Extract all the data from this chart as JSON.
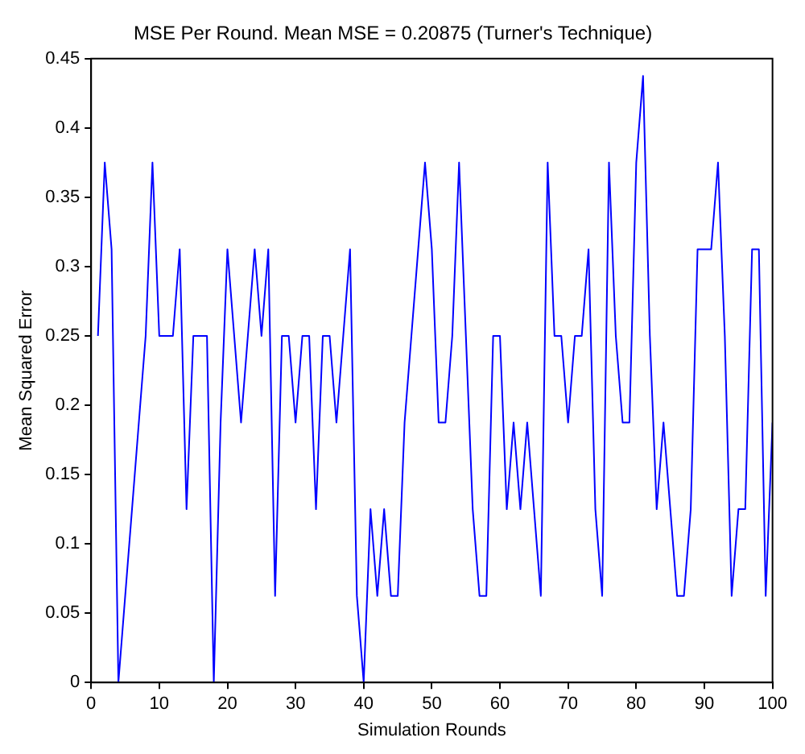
{
  "chart_data": {
    "type": "line",
    "title": "MSE Per Round. Mean MSE = 0.20875 (Turner's Technique)",
    "xlabel": "Simulation Rounds",
    "ylabel": "Mean Squared Error",
    "x": [
      1,
      2,
      3,
      4,
      5,
      6,
      7,
      8,
      9,
      10,
      11,
      12,
      13,
      14,
      15,
      16,
      17,
      18,
      19,
      20,
      21,
      22,
      23,
      24,
      25,
      26,
      27,
      28,
      29,
      30,
      31,
      32,
      33,
      34,
      35,
      36,
      37,
      38,
      39,
      40,
      41,
      42,
      43,
      44,
      45,
      46,
      47,
      48,
      49,
      50,
      51,
      52,
      53,
      54,
      55,
      56,
      57,
      58,
      59,
      60,
      61,
      62,
      63,
      64,
      65,
      66,
      67,
      68,
      69,
      70,
      71,
      72,
      73,
      74,
      75,
      76,
      77,
      78,
      79,
      80,
      81,
      82,
      83,
      84,
      85,
      86,
      87,
      88,
      89,
      90,
      91,
      92,
      93,
      94,
      95,
      96,
      97,
      98,
      99,
      100
    ],
    "series": [
      {
        "color": "#0000ff",
        "values": [
          0.25,
          0.375,
          0.3125,
          0,
          0.0625,
          0.125,
          0.1875,
          0.25,
          0.375,
          0.25,
          0.25,
          0.25,
          0.3125,
          0.125,
          0.25,
          0.25,
          0.25,
          0,
          0.1875,
          0.3125,
          0.25,
          0.1875,
          0.25,
          0.3125,
          0.25,
          0.3125,
          0.0625,
          0.25,
          0.25,
          0.1875,
          0.25,
          0.25,
          0.125,
          0.25,
          0.25,
          0.1875,
          0.25,
          0.3125,
          0.0625,
          0,
          0.125,
          0.0625,
          0.125,
          0.0625,
          0.0625,
          0.1875,
          0.25,
          0.3125,
          0.375,
          0.3125,
          0.1875,
          0.1875,
          0.25,
          0.375,
          0.25,
          0.125,
          0.0625,
          0.0625,
          0.25,
          0.25,
          0.125,
          0.1875,
          0.125,
          0.1875,
          0.125,
          0.0625,
          0.375,
          0.25,
          0.25,
          0.1875,
          0.25,
          0.25,
          0.3125,
          0.125,
          0.0625,
          0.375,
          0.25,
          0.1875,
          0.1875,
          0.375,
          0.4375,
          0.25,
          0.125,
          0.1875,
          0.125,
          0.0625,
          0.0625,
          0.125,
          0.3125,
          0.3125,
          0.3125,
          0.375,
          0.25,
          0.0625,
          0.125,
          0.125,
          0.3125,
          0.3125,
          0.0625,
          0.1875
        ]
      }
    ],
    "xlim": [
      0,
      100
    ],
    "xticks": [
      0,
      10,
      20,
      30,
      40,
      50,
      60,
      70,
      80,
      90,
      100
    ],
    "ylim": [
      0,
      0.45
    ],
    "yticks": [
      0,
      0.05,
      0.1,
      0.15,
      0.2,
      0.25,
      0.3,
      0.35,
      0.4,
      0.45
    ],
    "grid": false,
    "legend": false,
    "marker": "none",
    "line_style": "solid"
  }
}
